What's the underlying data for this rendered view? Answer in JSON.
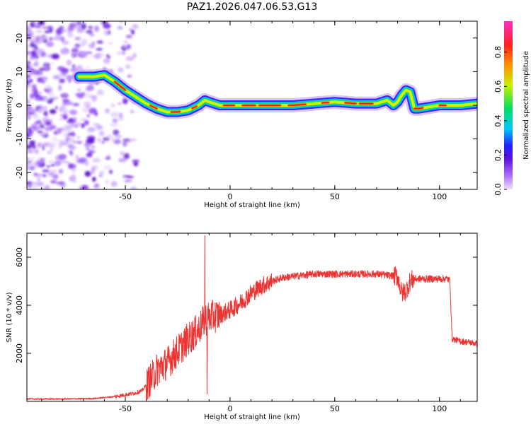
{
  "title": "PAZ1.2026.047.06.53.G13",
  "colors": {
    "series": "#ee3333",
    "colorbar": [
      "#d8b4ff",
      "#8a20f0",
      "#2020ff",
      "#00c8ff",
      "#00e060",
      "#c8f000",
      "#ff9000",
      "#ff2020",
      "#ff30c0"
    ]
  },
  "chart_data": [
    {
      "type": "heatmap",
      "xlabel": "Height of straight line (km)",
      "ylabel": "Frequency (Hz)",
      "xlim": [
        -97,
        118
      ],
      "ylim": [
        -25,
        25
      ],
      "xticks": [
        -50,
        0,
        50,
        100
      ],
      "yticks": [
        -20,
        -10,
        0,
        10,
        20
      ],
      "colorbar": {
        "label": "Normalized spectral amplitude",
        "range": [
          0,
          0.98
        ],
        "ticks": [
          "0.0",
          "0.2",
          "0.4",
          "0.6",
          "0.8"
        ]
      },
      "ridge": {
        "x": [
          -72,
          -65,
          -60,
          -55,
          -50,
          -45,
          -40,
          -35,
          -30,
          -25,
          -20,
          -15,
          -12,
          -10,
          -5,
          0,
          10,
          20,
          30,
          40,
          50,
          60,
          70,
          75,
          78,
          80,
          82,
          84,
          86,
          88,
          90,
          100,
          110,
          118
        ],
        "freq": [
          8.5,
          8.5,
          9,
          7,
          4.5,
          2.5,
          0.5,
          -1,
          -2,
          -2,
          -1.5,
          0,
          1.5,
          1,
          0,
          0,
          0,
          0,
          0,
          0.5,
          1,
          0.5,
          0.5,
          1.5,
          0,
          1,
          3,
          4.5,
          4,
          -1,
          -1,
          0,
          0,
          0.5
        ]
      },
      "noise_region_x": [
        -97,
        -55
      ]
    },
    {
      "type": "line",
      "xlabel": "Height of straight line (km)",
      "ylabel": "SNR (10 * v/v)",
      "xlim": [
        -97,
        118
      ],
      "ylim": [
        0,
        7000
      ],
      "xticks": [
        -50,
        0,
        50,
        100
      ],
      "yticks": [
        2000,
        4000,
        6000
      ],
      "envelope": {
        "x": [
          -97,
          -80,
          -65,
          -55,
          -45,
          -42,
          -38,
          -35,
          -30,
          -25,
          -20,
          -15,
          -12,
          -10,
          -5,
          0,
          5,
          10,
          15,
          20,
          25,
          30,
          35,
          40,
          45,
          50,
          55,
          60,
          65,
          70,
          75,
          80,
          82,
          84,
          86,
          88,
          92,
          100,
          104,
          105,
          106,
          110,
          115,
          118
        ],
        "y": [
          100,
          100,
          120,
          200,
          350,
          450,
          900,
          1300,
          1600,
          2100,
          2600,
          3000,
          3400,
          3500,
          3600,
          3800,
          4100,
          4500,
          4800,
          5000,
          5150,
          5200,
          5250,
          5300,
          5300,
          5300,
          5300,
          5300,
          5300,
          5300,
          5250,
          5200,
          4500,
          4600,
          5000,
          5100,
          5100,
          5100,
          5100,
          5000,
          2600,
          2500,
          2450,
          2400
        ]
      },
      "spikes": [
        {
          "x": -12,
          "y": 6900
        },
        {
          "x": -11,
          "y": 300
        }
      ]
    }
  ]
}
